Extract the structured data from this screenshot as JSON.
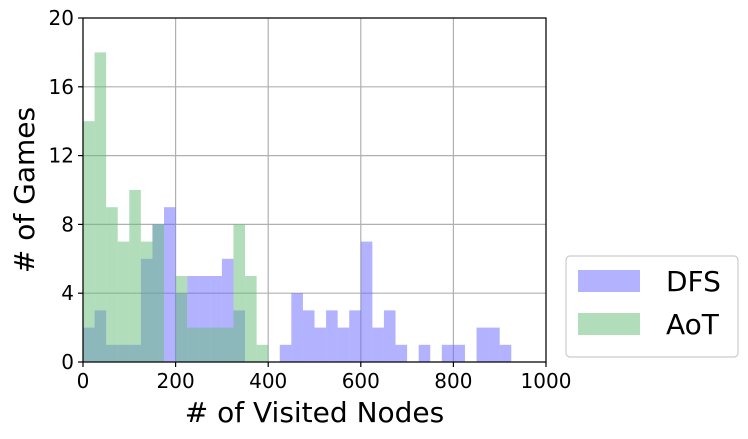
{
  "chart_data": {
    "type": "bar",
    "title": "",
    "xlabel": "# of Visited Nodes",
    "ylabel": "# of Games",
    "xlim": [
      0,
      1000
    ],
    "ylim": [
      0,
      20
    ],
    "xticks": [
      "0",
      "200",
      "400",
      "600",
      "800",
      "1000"
    ],
    "yticks": [
      "0",
      "4",
      "8",
      "12",
      "16",
      "20"
    ],
    "grid": true,
    "legend_position": "outside-right-bottom",
    "bin_width": 25,
    "series": [
      {
        "name": "DFS",
        "color": "#6666ff",
        "opacity": 0.5,
        "bins": [
          {
            "x": 0,
            "count": 2
          },
          {
            "x": 25,
            "count": 3
          },
          {
            "x": 50,
            "count": 1
          },
          {
            "x": 75,
            "count": 1
          },
          {
            "x": 100,
            "count": 1
          },
          {
            "x": 125,
            "count": 6
          },
          {
            "x": 150,
            "count": 8
          },
          {
            "x": 175,
            "count": 9
          },
          {
            "x": 200,
            "count": 4
          },
          {
            "x": 225,
            "count": 5
          },
          {
            "x": 250,
            "count": 5
          },
          {
            "x": 275,
            "count": 5
          },
          {
            "x": 300,
            "count": 6
          },
          {
            "x": 325,
            "count": 3
          },
          {
            "x": 425,
            "count": 1
          },
          {
            "x": 450,
            "count": 4
          },
          {
            "x": 475,
            "count": 3
          },
          {
            "x": 500,
            "count": 2
          },
          {
            "x": 525,
            "count": 3
          },
          {
            "x": 550,
            "count": 2
          },
          {
            "x": 575,
            "count": 3
          },
          {
            "x": 600,
            "count": 7
          },
          {
            "x": 625,
            "count": 2
          },
          {
            "x": 650,
            "count": 3
          },
          {
            "x": 675,
            "count": 1
          },
          {
            "x": 725,
            "count": 1
          },
          {
            "x": 775,
            "count": 1
          },
          {
            "x": 800,
            "count": 1
          },
          {
            "x": 850,
            "count": 2
          },
          {
            "x": 875,
            "count": 2
          },
          {
            "x": 900,
            "count": 1
          }
        ]
      },
      {
        "name": "AoT",
        "color": "#66bb77",
        "opacity": 0.5,
        "bins": [
          {
            "x": 0,
            "count": 14
          },
          {
            "x": 25,
            "count": 18
          },
          {
            "x": 50,
            "count": 9
          },
          {
            "x": 75,
            "count": 7
          },
          {
            "x": 100,
            "count": 10
          },
          {
            "x": 125,
            "count": 7
          },
          {
            "x": 150,
            "count": 8
          },
          {
            "x": 200,
            "count": 5
          },
          {
            "x": 225,
            "count": 2
          },
          {
            "x": 250,
            "count": 2
          },
          {
            "x": 275,
            "count": 2
          },
          {
            "x": 300,
            "count": 2
          },
          {
            "x": 325,
            "count": 8
          },
          {
            "x": 350,
            "count": 5
          },
          {
            "x": 375,
            "count": 1
          }
        ]
      }
    ]
  }
}
